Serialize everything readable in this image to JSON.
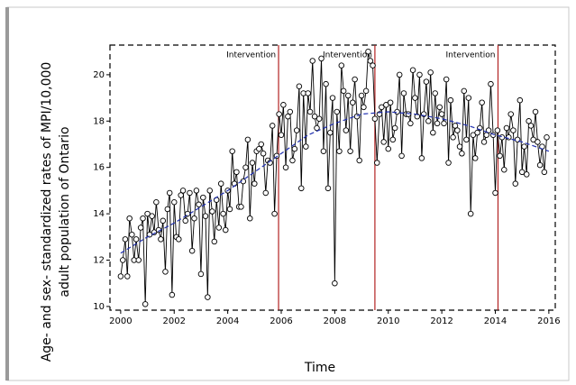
{
  "chart_data": {
    "type": "line",
    "x_label": "Time",
    "y_label": [
      "Age- and sex- standardized rates of MPI/10,000",
      "adult population of Ontario"
    ],
    "xlim": [
      1999.6,
      2016.24
    ],
    "ylim": [
      9.84,
      21.28
    ],
    "xticks": [
      2000,
      2002,
      2004,
      2006,
      2008,
      2010,
      2012,
      2014,
      2016
    ],
    "yticks": [
      10,
      12,
      14,
      16,
      18,
      20
    ],
    "series": [
      {
        "color": "#000000",
        "style": "solid",
        "markers": true,
        "x": [
          2000,
          2000.08,
          2000.17,
          2000.25,
          2000.33,
          2000.42,
          2000.5,
          2000.58,
          2000.67,
          2000.75,
          2000.83,
          2000.92,
          2001,
          2001.08,
          2001.17,
          2001.25,
          2001.33,
          2001.42,
          2001.5,
          2001.58,
          2001.67,
          2001.75,
          2001.83,
          2001.92,
          2002,
          2002.08,
          2002.17,
          2002.25,
          2002.33,
          2002.42,
          2002.5,
          2002.58,
          2002.67,
          2002.75,
          2002.83,
          2002.92,
          2003,
          2003.08,
          2003.17,
          2003.25,
          2003.33,
          2003.42,
          2003.5,
          2003.58,
          2003.67,
          2003.75,
          2003.83,
          2003.92,
          2004,
          2004.08,
          2004.17,
          2004.25,
          2004.33,
          2004.42,
          2004.5,
          2004.58,
          2004.67,
          2004.75,
          2004.83,
          2004.92,
          2005,
          2005.08,
          2005.17,
          2005.25,
          2005.33,
          2005.42,
          2005.5,
          2005.58,
          2005.67,
          2005.75,
          2005.83,
          2005.92,
          2006,
          2006.08,
          2006.17,
          2006.25,
          2006.33,
          2006.42,
          2006.5,
          2006.58,
          2006.67,
          2006.75,
          2006.83,
          2006.92,
          2007,
          2007.08,
          2007.17,
          2007.25,
          2007.33,
          2007.42,
          2007.5,
          2007.58,
          2007.67,
          2007.75,
          2007.83,
          2007.92,
          2008,
          2008.08,
          2008.17,
          2008.25,
          2008.33,
          2008.42,
          2008.5,
          2008.58,
          2008.67,
          2008.75,
          2008.83,
          2008.92,
          2009,
          2009.08,
          2009.17,
          2009.25,
          2009.33,
          2009.42,
          2009.5,
          2009.58,
          2009.67,
          2009.75,
          2009.83,
          2009.92,
          2010,
          2010.08,
          2010.17,
          2010.25,
          2010.33,
          2010.42,
          2010.5,
          2010.58,
          2010.67,
          2010.75,
          2010.83,
          2010.92,
          2011,
          2011.08,
          2011.17,
          2011.25,
          2011.33,
          2011.42,
          2011.5,
          2011.58,
          2011.67,
          2011.75,
          2011.83,
          2011.92,
          2012,
          2012.08,
          2012.17,
          2012.25,
          2012.33,
          2012.42,
          2012.5,
          2012.58,
          2012.67,
          2012.75,
          2012.83,
          2012.92,
          2013,
          2013.08,
          2013.17,
          2013.25,
          2013.33,
          2013.42,
          2013.5,
          2013.58,
          2013.67,
          2013.75,
          2013.83,
          2013.92,
          2014,
          2014.08,
          2014.17,
          2014.25,
          2014.33,
          2014.42,
          2014.5,
          2014.58,
          2014.67,
          2014.75,
          2014.83,
          2014.92,
          2015,
          2015.08,
          2015.17,
          2015.25,
          2015.33,
          2015.42,
          2015.5,
          2015.58,
          2015.67,
          2015.75,
          2015.83,
          2015.92
        ],
        "values": [
          11.3,
          12.0,
          12.9,
          11.3,
          13.8,
          13.1,
          12.0,
          12.9,
          12.0,
          13.4,
          13.8,
          10.1,
          14.0,
          13.1,
          13.9,
          13.2,
          14.5,
          13.3,
          12.9,
          13.7,
          11.5,
          14.2,
          14.9,
          10.5,
          14.5,
          13.0,
          12.9,
          14.8,
          15.0,
          13.7,
          14.0,
          14.9,
          12.4,
          13.8,
          15.0,
          14.4,
          11.4,
          14.7,
          13.9,
          10.4,
          15.0,
          14.1,
          12.8,
          14.6,
          13.4,
          15.3,
          14.0,
          13.3,
          15.0,
          14.2,
          16.7,
          15.3,
          15.8,
          14.3,
          14.3,
          15.4,
          16.0,
          17.2,
          13.8,
          16.2,
          15.3,
          16.7,
          16.8,
          17.0,
          16.6,
          14.9,
          16.3,
          16.2,
          17.8,
          14.0,
          16.5,
          18.3,
          17.4,
          18.7,
          16.0,
          18.2,
          18.4,
          16.3,
          16.8,
          17.6,
          19.5,
          15.1,
          19.2,
          16.9,
          19.2,
          18.4,
          20.6,
          18.2,
          17.7,
          18.1,
          20.7,
          16.7,
          19.6,
          15.1,
          17.5,
          19.0,
          11.0,
          18.4,
          16.7,
          20.4,
          19.3,
          17.6,
          19.1,
          16.7,
          18.8,
          19.8,
          18.2,
          16.3,
          19.1,
          18.6,
          19.3,
          21.0,
          20.6,
          20.4,
          18.1,
          16.2,
          18.3,
          18.6,
          17.1,
          18.7,
          16.8,
          18.8,
          17.2,
          17.7,
          18.4,
          20.0,
          16.5,
          19.2,
          18.3,
          18.3,
          17.9,
          20.2,
          19.0,
          18.2,
          20.0,
          16.4,
          18.3,
          19.7,
          18.0,
          20.1,
          17.5,
          19.2,
          17.9,
          18.6,
          18.3,
          17.9,
          19.8,
          16.2,
          18.9,
          17.3,
          17.8,
          17.6,
          16.9,
          16.6,
          19.3,
          17.2,
          19.0,
          14.0,
          17.4,
          16.4,
          17.5,
          17.7,
          18.8,
          17.1,
          17.4,
          17.6,
          19.6,
          17.4,
          14.9,
          17.6,
          16.5,
          17.3,
          15.9,
          17.7,
          17.3,
          18.3,
          17.6,
          15.3,
          17.2,
          18.9,
          15.8,
          16.9,
          15.7,
          18.0,
          17.8,
          17.2,
          18.4,
          17.1,
          16.1,
          16.9,
          15.8,
          17.3
        ]
      },
      {
        "color": "#1f2fb0",
        "style": "dashed",
        "markers": false,
        "x": [
          2000,
          2001,
          2002,
          2003,
          2004,
          2005,
          2006,
          2007,
          2008,
          2009,
          2010,
          2011,
          2012,
          2013,
          2014,
          2015,
          2016
        ],
        "values": [
          12.3,
          13.0,
          13.6,
          14.3,
          15.0,
          15.8,
          16.6,
          17.4,
          17.9,
          18.3,
          18.4,
          18.3,
          18.1,
          17.8,
          17.4,
          17.1,
          16.7
        ]
      }
    ],
    "interventions": [
      {
        "x": 2005.9,
        "label": "Intervention"
      },
      {
        "x": 2009.5,
        "label": "Intervention"
      },
      {
        "x": 2014.1,
        "label": "Intervention"
      }
    ],
    "intervention_color": "#b22222"
  }
}
